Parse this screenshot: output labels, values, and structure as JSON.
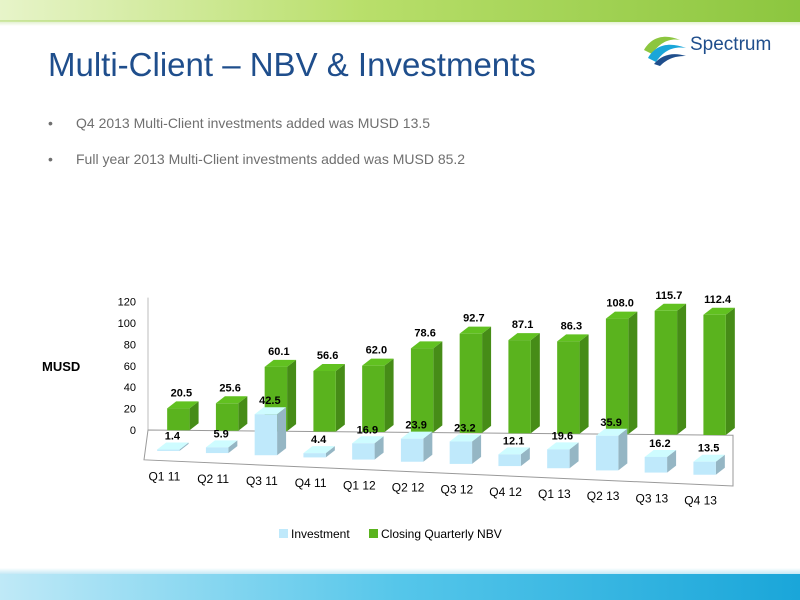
{
  "slide": {
    "title": "Multi-Client – NBV & Investments",
    "logo_text": "Spectrum",
    "bullets": [
      "Q4 2013 Multi-Client investments added was MUSD 13.5",
      "Full year 2013 Multi-Client investments added was MUSD 85.2"
    ]
  },
  "chart_data": {
    "type": "bar",
    "title": "",
    "ylabel": "MUSD",
    "xlabel": "",
    "ylim": [
      0,
      120
    ],
    "yticks": [
      0,
      20,
      40,
      60,
      80,
      100,
      120
    ],
    "categories": [
      "Q1 11",
      "Q2 11",
      "Q3 11",
      "Q4 11",
      "Q1 12",
      "Q2 12",
      "Q3 12",
      "Q4 12",
      "Q1 13",
      "Q2 13",
      "Q3 13",
      "Q4 13"
    ],
    "series": [
      {
        "name": "Investment",
        "color": "#bfe9fb",
        "values": [
          1.4,
          5.9,
          42.5,
          4.4,
          16.9,
          23.9,
          23.2,
          12.1,
          19.6,
          35.9,
          16.2,
          13.5
        ]
      },
      {
        "name": "Closing Quarterly NBV",
        "color": "#5ab31e",
        "values": [
          20.5,
          25.6,
          60.1,
          56.6,
          62.0,
          78.6,
          92.7,
          87.1,
          86.3,
          108.0,
          115.7,
          112.4
        ]
      }
    ],
    "data_labels": true,
    "legend": "bottom",
    "projection": "3d-perspective"
  }
}
